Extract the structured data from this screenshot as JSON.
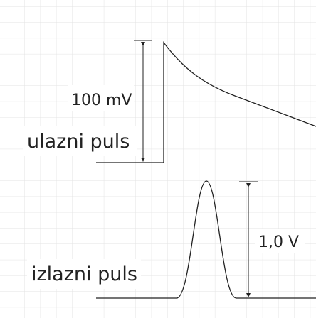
{
  "input_pulse": {
    "amplitude": "100 mV",
    "name": "ulazni puls"
  },
  "output_pulse": {
    "amplitude": "1,0 V",
    "name": "izlazni puls"
  }
}
